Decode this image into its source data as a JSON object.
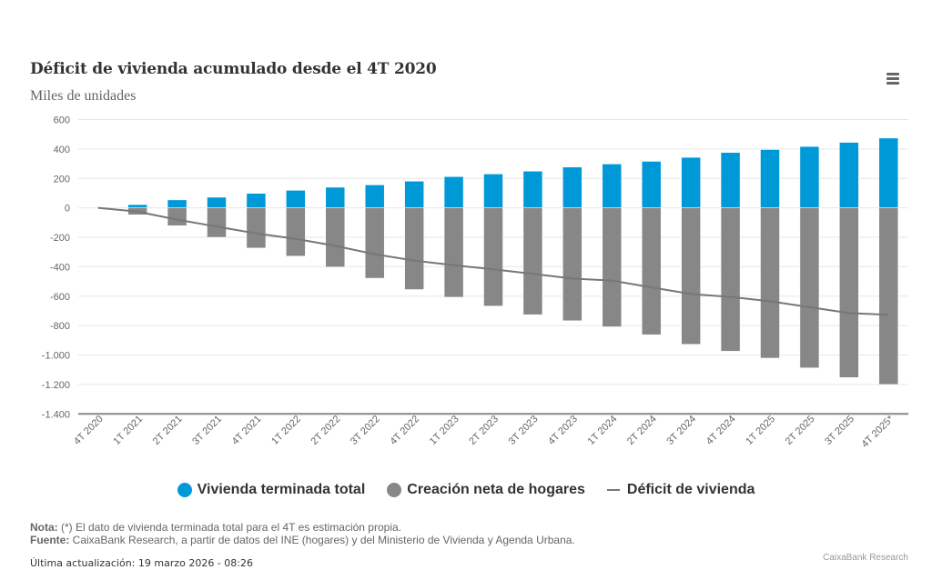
{
  "header": {
    "title": "Déficit de vivienda acumulado desde el 4T 2020",
    "subtitle": "Miles de unidades",
    "menu_icon": "hamburger-menu-icon"
  },
  "colors": {
    "vivienda": "#0099d8",
    "hogares": "#878787",
    "deficit": "#777777",
    "grid": "#e6e6e6",
    "axis": "#888888"
  },
  "chart_data": {
    "type": "bar",
    "title": "Déficit de vivienda acumulado desde el 4T 2020",
    "subtitle": "Miles de unidades",
    "xlabel": "",
    "ylabel": "",
    "ylim": [
      -1400,
      600
    ],
    "yticks": [
      600,
      400,
      200,
      0,
      -200,
      -400,
      -600,
      -800,
      -1000,
      -1200,
      -1400
    ],
    "ytick_labels": [
      "600",
      "400",
      "200",
      "0",
      "-200",
      "-400",
      "-600",
      "-800",
      "-1.000",
      "-1.200",
      "-1.400"
    ],
    "grid": true,
    "legend_position": "bottom",
    "categories": [
      "4T 2020",
      "1T 2021",
      "2T 2021",
      "3T 2021",
      "4T 2021",
      "1T 2022",
      "2T 2022",
      "3T 2022",
      "4T 2022",
      "1T 2023",
      "2T 2023",
      "3T 2023",
      "4T 2023",
      "1T 2024",
      "2T 2024",
      "3T 2024",
      "4T 2024",
      "1T 2025",
      "2T 2025",
      "3T 2025",
      "4T 2025*"
    ],
    "series": [
      {
        "name": "Vivienda terminada total",
        "type": "bar",
        "values": [
          0,
          22,
          54,
          72,
          98,
          119,
          140,
          156,
          181,
          212,
          230,
          249,
          277,
          298,
          316,
          343,
          376,
          396,
          417,
          445,
          474
        ]
      },
      {
        "name": "Creación neta de hogares",
        "type": "bar",
        "values": [
          0,
          -47,
          -121,
          -200,
          -273,
          -328,
          -402,
          -478,
          -555,
          -607,
          -667,
          -726,
          -767,
          -808,
          -862,
          -927,
          -974,
          -1021,
          -1087,
          -1153,
          -1200
        ]
      },
      {
        "name": "Déficit de vivienda",
        "type": "line",
        "values": [
          0,
          -26,
          -80,
          -127,
          -174,
          -211,
          -258,
          -315,
          -358,
          -390,
          -418,
          -449,
          -480,
          -494,
          -540,
          -585,
          -605,
          -635,
          -675,
          -715,
          -727
        ]
      }
    ]
  },
  "legend": {
    "items": [
      {
        "label": "Vivienda terminada total",
        "marker": "circle"
      },
      {
        "label": "Creación neta de hogares",
        "marker": "circle"
      },
      {
        "label": "Déficit de vivienda",
        "marker": "line"
      }
    ]
  },
  "footer": {
    "nota_label": "Nota:",
    "nota_text": " (*) El dato de vivienda terminada total para el 4T es estimación propia.",
    "fuente_label": "Fuente:",
    "fuente_text": " CaixaBank Research, a partir de datos del INE (hogares) y del Ministerio de Vivienda y Agenda Urbana.",
    "updated": "Última actualización: 19 marzo 2026 - 08:26",
    "credit": "CaixaBank Research"
  }
}
